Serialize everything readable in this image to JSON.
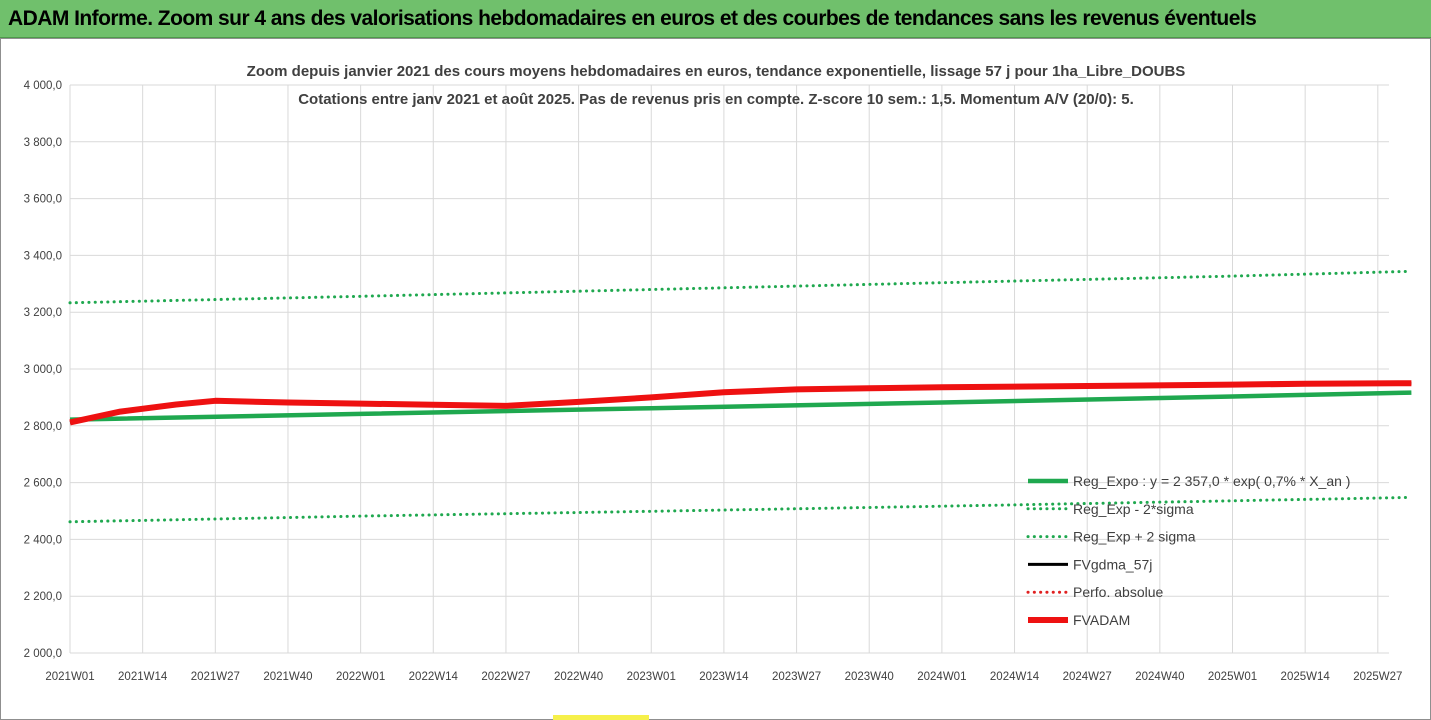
{
  "banner": {
    "title": "ADAM Informe. Zoom sur 4 ans des valorisations hebdomadaires en euros et des courbes de tendances sans les revenus éventuels"
  },
  "chart_data": {
    "type": "line",
    "title": "Zoom depuis janvier 2021 des cours moyens hebdomadaires en euros, tendance exponentielle, lissage 57 j pour 1ha_Libre_DOUBS",
    "subtitle": "Cotations entre janv 2021 et août 2025.  Pas de revenus pris en compte. Z-score 10 sem.: 1,5. Momentum A/V (20/0): 5.",
    "ylim": [
      2000,
      4000
    ],
    "ytick_labels": [
      "4 000,0",
      "3 800,0",
      "3 600,0",
      "3 400,0",
      "3 200,0",
      "3 000,0",
      "2 800,0",
      "2 600,0",
      "2 400,0",
      "2 200,0",
      "2 000,0"
    ],
    "x_tick_labels": [
      "2021W01",
      "2021W14",
      "2021W27",
      "2021W40",
      "2022W01",
      "2022W14",
      "2022W27",
      "2022W40",
      "2023W01",
      "2023W14",
      "2023W27",
      "2023W40",
      "2024W01",
      "2024W14",
      "2024W27",
      "2024W40",
      "2025W01",
      "2025W14",
      "2025W27"
    ],
    "x_span_weeks": 236,
    "grid": true,
    "legend_position": "right",
    "series": [
      {
        "name": "Reg_Expo : y = 2 357,0 * exp( 0,7% *  X_an )",
        "color": "#1fa84f",
        "style": "solid-thick",
        "x": [
          "2021W01",
          "2022W01",
          "2023W01",
          "2024W01",
          "2025W01",
          "2025W33"
        ],
        "values": [
          2822,
          2842,
          2862,
          2882,
          2903,
          2917
        ]
      },
      {
        "name": "Reg_Exp - 2*sigma",
        "color": "#1fa84f",
        "style": "dotted",
        "x": [
          "2021W01",
          "2022W01",
          "2023W01",
          "2024W01",
          "2025W01",
          "2025W33"
        ],
        "values": [
          2462,
          2482,
          2499,
          2517,
          2536,
          2548
        ]
      },
      {
        "name": "Reg_Exp + 2 sigma",
        "color": "#1fa84f",
        "style": "dotted",
        "x": [
          "2021W01",
          "2022W01",
          "2023W01",
          "2024W01",
          "2025W01",
          "2025W33"
        ],
        "values": [
          3233,
          3256,
          3280,
          3304,
          3327,
          3344
        ]
      },
      {
        "name": "FVgdma_57j",
        "color": "#000000",
        "style": "solid",
        "x": [
          "2021W01",
          "2021W10",
          "2021W20",
          "2021W27",
          "2021W40",
          "2022W01",
          "2022W14",
          "2022W27",
          "2022W40",
          "2023W01",
          "2023W14",
          "2023W27",
          "2023W40",
          "2024W01",
          "2024W27",
          "2025W01",
          "2025W14",
          "2025W33"
        ],
        "values": [
          2812,
          2850,
          2875,
          2885,
          2882,
          2878,
          2874,
          2872,
          2884,
          2900,
          2918,
          2928,
          2932,
          2936,
          2940,
          2945,
          2948,
          2950
        ]
      },
      {
        "name": "Perfo. absolue",
        "color": "#e02020",
        "style": "dotted",
        "x": [],
        "values": []
      },
      {
        "name": "FVADAM",
        "color": "#ee1111",
        "style": "solid-thick",
        "x": [
          "2021W01",
          "2021W10",
          "2021W20",
          "2021W27",
          "2021W40",
          "2022W01",
          "2022W14",
          "2022W27",
          "2022W40",
          "2023W01",
          "2023W14",
          "2023W27",
          "2023W40",
          "2024W01",
          "2024W27",
          "2025W01",
          "2025W14",
          "2025W33"
        ],
        "values": [
          2812,
          2850,
          2875,
          2888,
          2882,
          2878,
          2874,
          2870,
          2884,
          2900,
          2918,
          2928,
          2932,
          2936,
          2940,
          2945,
          2948,
          2950
        ]
      }
    ]
  }
}
